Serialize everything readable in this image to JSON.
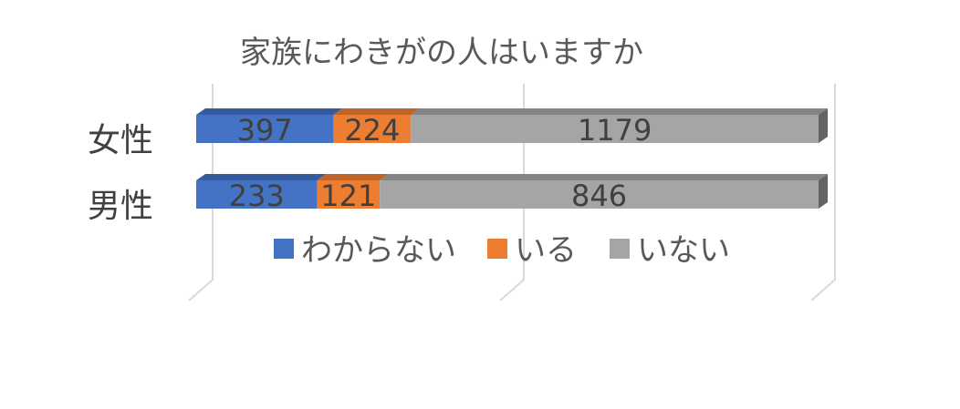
{
  "chart_data": {
    "type": "bar",
    "orientation": "horizontal",
    "stacked": "percent",
    "style": "3d",
    "title": "家族にわきがの人はいますか",
    "categories": [
      "女性",
      "男性"
    ],
    "series": [
      {
        "name": "わからない",
        "values": [
          397,
          233
        ],
        "color": "#4472C4"
      },
      {
        "name": "いる",
        "values": [
          224,
          121
        ],
        "color": "#ED7D31"
      },
      {
        "name": "いない",
        "values": [
          1179,
          846
        ],
        "color": "#A5A5A5"
      }
    ],
    "xlim": [
      0,
      1
    ],
    "grid": true,
    "legend_position": "bottom",
    "data_labels": true
  }
}
